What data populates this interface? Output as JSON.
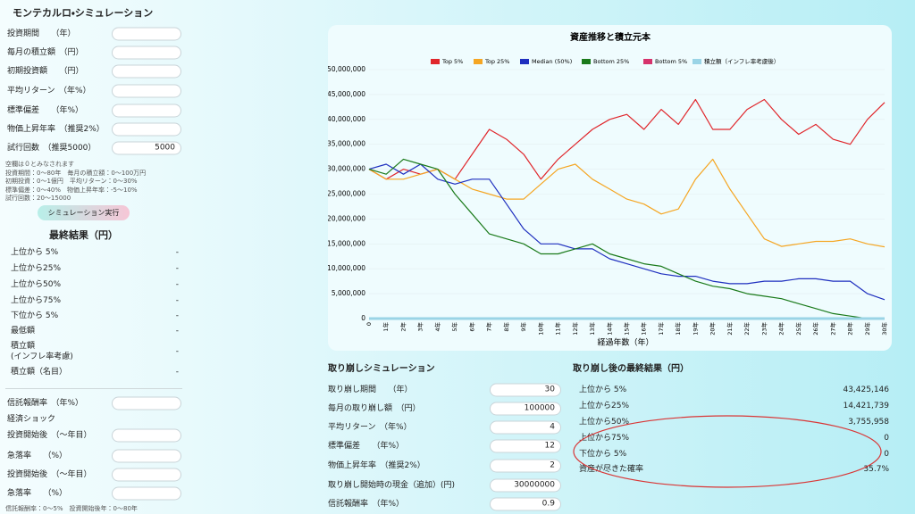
{
  "app_title": "モンテカルロ・シミュレーション",
  "form": [
    {
      "label": "投資期間　　（年）"
    },
    {
      "label": "毎月の積立額　（円）"
    },
    {
      "label": "初期投資額　　（円）"
    },
    {
      "label": "平均リターン　（年%）"
    },
    {
      "label": "標準偏差　　（年%）"
    },
    {
      "label": "物価上昇年率　（推奨2%）"
    },
    {
      "label": "試行回数　（推奨5000）",
      "value": "5000"
    }
  ],
  "notes": [
    "空欄は０とみなされます",
    "投資期間：0〜80年　毎月の積立額：0〜100万円",
    "初期投資：0〜1億円　平均リターン：0〜30%",
    "標準偏差：0〜40%　物価上昇年率：-5〜10%",
    "試行回数：20〜15000"
  ],
  "run_button": "シミュレーション実行",
  "results_title": "最終結果（円）",
  "results": [
    {
      "label": [
        "上位から 5%"
      ],
      "value": "-"
    },
    {
      "label": [
        "上位から25%"
      ],
      "value": "-"
    },
    {
      "label": [
        "上位から50%"
      ],
      "value": "-"
    },
    {
      "label": [
        "上位から75%"
      ],
      "value": "-"
    },
    {
      "label": [
        "下位から 5%"
      ],
      "value": "-"
    },
    {
      "label": [
        "最低額"
      ],
      "value": "-"
    },
    {
      "label": [
        "積立額",
        "(インフレ率考慮)"
      ],
      "value": "-"
    },
    {
      "label": [
        "積立額（名目）"
      ],
      "value": "-"
    }
  ],
  "fee_label": "信託報酬率　（年%）",
  "shock_title": "経済ショック",
  "shock_form": [
    {
      "label": "投資開始後　（〜年目）"
    },
    {
      "label": "急落率　　（%）"
    },
    {
      "label": "投資開始後　（〜年目）"
    },
    {
      "label": "急落率　　（%）"
    }
  ],
  "footer_note": "信託報酬率：0〜5%　投資開始後年：0〜80年",
  "chart_data": {
    "type": "line",
    "title": "資産推移と積立元本",
    "x_label": "経過年数（年）",
    "categories": [
      "0",
      "1年",
      "2年",
      "3年",
      "4年",
      "5年",
      "6年",
      "7年",
      "8年",
      "9年",
      "10年",
      "11年",
      "12年",
      "13年",
      "14年",
      "15年",
      "16年",
      "17年",
      "18年",
      "19年",
      "20年",
      "21年",
      "22年",
      "23年",
      "24年",
      "25年",
      "26年",
      "27年",
      "28年",
      "29年",
      "30年"
    ],
    "series": [
      {
        "name": "Top 5%",
        "color": "#e0262b",
        "values": [
          30000000,
          28000000,
          30000000,
          29000000,
          30000000,
          28000000,
          33000000,
          38000000,
          36000000,
          33000000,
          28000000,
          32000000,
          35000000,
          38000000,
          40000000,
          41000000,
          38000000,
          42000000,
          39000000,
          44000000,
          38000000,
          38000000,
          42000000,
          44000000,
          40000000,
          37000000,
          39000000,
          36000000,
          35000000,
          40000000,
          43400000
        ]
      },
      {
        "name": "Top 25%",
        "color": "#f5a623",
        "values": [
          30000000,
          28000000,
          28000000,
          29000000,
          30000000,
          28000000,
          26000000,
          25000000,
          24000000,
          24000000,
          27000000,
          30000000,
          31000000,
          28000000,
          26000000,
          24000000,
          23000000,
          21000000,
          22000000,
          28000000,
          32000000,
          26000000,
          21000000,
          16000000,
          14500000,
          15000000,
          15500000,
          15500000,
          16000000,
          15000000,
          14400000
        ]
      },
      {
        "name": "Median (50%)",
        "color": "#1f2fbf",
        "values": [
          30000000,
          31000000,
          29000000,
          31000000,
          28000000,
          27000000,
          28000000,
          28000000,
          23000000,
          18000000,
          15000000,
          15000000,
          14000000,
          14000000,
          12000000,
          11000000,
          10000000,
          9000000,
          8500000,
          8500000,
          7500000,
          7000000,
          7000000,
          7500000,
          7500000,
          8000000,
          8000000,
          7500000,
          7500000,
          5000000,
          3800000
        ]
      },
      {
        "name": "Bottom 25%",
        "color": "#1a7a1a",
        "values": [
          30000000,
          29000000,
          32000000,
          31000000,
          30000000,
          25000000,
          21000000,
          17000000,
          16000000,
          15000000,
          13000000,
          13000000,
          14000000,
          15000000,
          13000000,
          12000000,
          11000000,
          10500000,
          9000000,
          7500000,
          6500000,
          6000000,
          5000000,
          4500000,
          4000000,
          3000000,
          2000000,
          1000000,
          500000,
          0,
          0
        ]
      },
      {
        "name": "Bottom 5%",
        "color": "#d6336c",
        "values": [
          0,
          0,
          0,
          0,
          0,
          0,
          0,
          0,
          0,
          0,
          0,
          0,
          0,
          0,
          0,
          0,
          0,
          0,
          0,
          0,
          0,
          0,
          0,
          0,
          0,
          0,
          0,
          0,
          0,
          0,
          0
        ]
      },
      {
        "name": "積立額（インフレ率考慮後）",
        "color": "#9ad4e6",
        "values": [
          0,
          0,
          0,
          0,
          0,
          0,
          0,
          0,
          0,
          0,
          0,
          0,
          0,
          0,
          0,
          0,
          0,
          0,
          0,
          0,
          0,
          0,
          0,
          0,
          0,
          0,
          0,
          0,
          0,
          0,
          0
        ]
      }
    ],
    "ylim": [
      0,
      50000000
    ],
    "yticks": [
      0,
      {
        "value": 5000000,
        "label": "5,000,000"
      },
      {
        "value": 10000000,
        "label": "10,000,000"
      },
      {
        "value": 15000000,
        "label": "15,000,000"
      },
      {
        "value": 20000000,
        "label": "20,000,000"
      },
      {
        "value": 25000000,
        "label": "25,000,000"
      },
      {
        "value": 30000000,
        "label": "30,000,000"
      },
      {
        "value": 35000000,
        "label": "35,000,000"
      },
      {
        "value": 40000000,
        "label": "40,000,000"
      },
      {
        "value": 45000000,
        "label": "45,000,000"
      },
      {
        "value": 50000000,
        "label": "50,000,000"
      }
    ],
    "grid": true,
    "legend": "top"
  },
  "withdrawal": {
    "title": "取り崩しシミュレーション",
    "rows": [
      {
        "label": "取り崩し期間　　（年）",
        "value": "30"
      },
      {
        "label": "毎月の取り崩し額　（円）",
        "value": "100000"
      },
      {
        "label": "平均リターン　（年%）",
        "value": "4"
      },
      {
        "label": "標準偏差　　（年%）",
        "value": "12"
      },
      {
        "label": "物価上昇年率　（推奨2%）",
        "value": "2"
      },
      {
        "label": "取り崩し開始時の現金（追加）(円)",
        "value": "30000000"
      },
      {
        "label": "信託報酬率　（年%）",
        "value": "0.9"
      }
    ]
  },
  "final": {
    "title": "取り崩し後の最終結果（円）",
    "rows": [
      {
        "label": "上位から 5%",
        "value": "43,425,146"
      },
      {
        "label": "上位から25%",
        "value": "14,421,739"
      },
      {
        "label": "上位から50%",
        "value": "3,755,958"
      },
      {
        "label": "上位から75%",
        "value": "0"
      },
      {
        "label": "下位から 5%",
        "value": "0"
      },
      {
        "label": "資産が尽きた確率",
        "value": "35.7%"
      }
    ]
  }
}
